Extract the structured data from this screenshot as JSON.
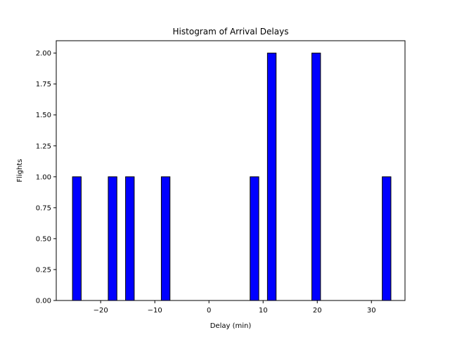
{
  "chart_data": {
    "type": "bar",
    "title": "Histogram of Arrival Delays",
    "xlabel": "Delay (min)",
    "ylabel": "Flights",
    "xlim": [
      -28.2,
      36.2
    ],
    "ylim": [
      0,
      2.1
    ],
    "grid": false,
    "bin_width": 1.6,
    "bars": [
      {
        "x": -24.4,
        "value": 1
      },
      {
        "x": -17.8,
        "value": 1
      },
      {
        "x": -14.6,
        "value": 1
      },
      {
        "x": -8.0,
        "value": 1
      },
      {
        "x": 8.4,
        "value": 1
      },
      {
        "x": 11.6,
        "value": 2
      },
      {
        "x": 19.8,
        "value": 2
      },
      {
        "x": 32.8,
        "value": 1
      }
    ],
    "x_ticks": [
      {
        "value": -20,
        "label": "−20"
      },
      {
        "value": -10,
        "label": "−10"
      },
      {
        "value": 0,
        "label": "0"
      },
      {
        "value": 10,
        "label": "10"
      },
      {
        "value": 20,
        "label": "20"
      },
      {
        "value": 30,
        "label": "30"
      }
    ],
    "y_ticks": [
      {
        "value": 0,
        "label": "0.00"
      },
      {
        "value": 0.25,
        "label": "0.25"
      },
      {
        "value": 0.5,
        "label": "0.50"
      },
      {
        "value": 0.75,
        "label": "0.75"
      },
      {
        "value": 1.0,
        "label": "1.00"
      },
      {
        "value": 1.25,
        "label": "1.25"
      },
      {
        "value": 1.5,
        "label": "1.50"
      },
      {
        "value": 1.75,
        "label": "1.75"
      },
      {
        "value": 2.0,
        "label": "2.00"
      }
    ],
    "colors": {
      "bar": "#0000ff",
      "edge": "#000000"
    }
  }
}
